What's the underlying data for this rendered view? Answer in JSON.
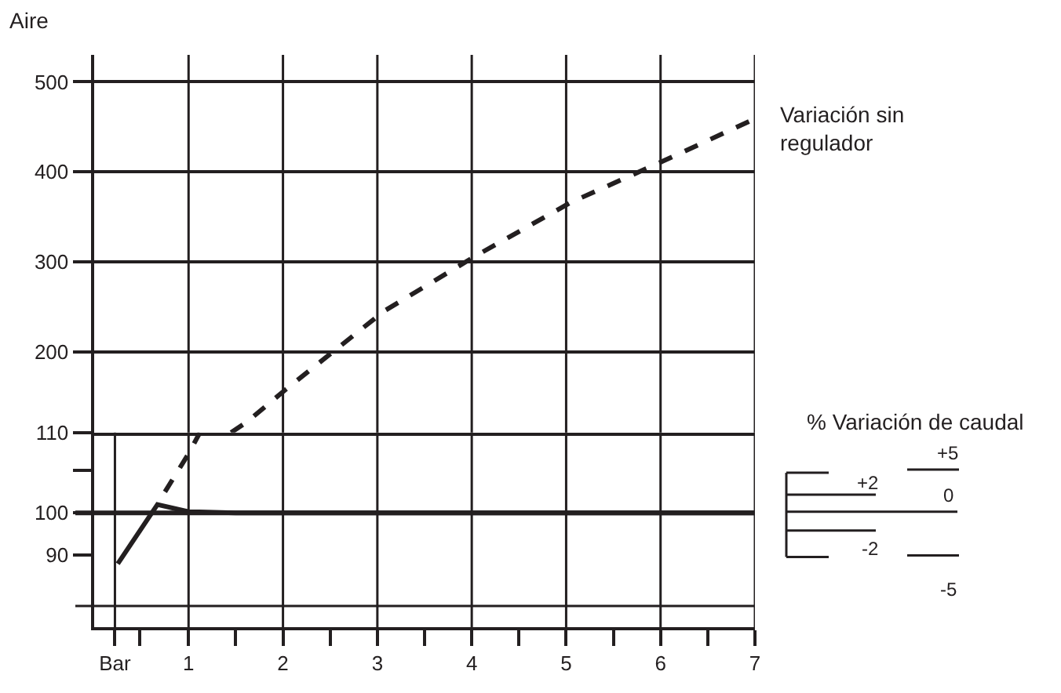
{
  "chart_data": [
    {
      "type": "line",
      "ylabel": "Aire",
      "xlim": [
        0,
        7
      ],
      "xticks": [
        1,
        2,
        3,
        4,
        5,
        6,
        7
      ],
      "ylim": [
        110,
        530
      ],
      "yticks": [
        110,
        200,
        300,
        400,
        500
      ],
      "tick_labels": "y",
      "grid": true,
      "series": [
        {
          "name": "Variación sin regulador",
          "color": "#231f20",
          "line_style": "dashed",
          "x": [
            1.45,
            1.62,
            2.03,
            3.07,
            4.05,
            5.05,
            6.03,
            7.0
          ],
          "values": [
            110,
            122,
            158,
            245,
            307,
            366,
            412,
            459
          ]
        }
      ]
    },
    {
      "type": "line",
      "xlim": [
        0,
        7
      ],
      "xticks": [
        {
          "value": 0.22,
          "label": "Bar"
        },
        {
          "value": 0.48,
          "label": null
        },
        1,
        {
          "value": 1.5,
          "label": null
        },
        2,
        {
          "value": 2.5,
          "label": null
        },
        3,
        {
          "value": 3.5,
          "label": null
        },
        4,
        {
          "value": 4.5,
          "label": null
        },
        5,
        {
          "value": 5.5,
          "label": null
        },
        6,
        {
          "value": 6.5,
          "label": null
        },
        7
      ],
      "ylim": [
        73,
        119
      ],
      "yticks": [
        90,
        100,
        {
          "value": 110,
          "label": null
        }
      ],
      "grid": "x",
      "series": [
        {
          "color": "#231f20",
          "line_style": "solid",
          "x": [
            0.25,
            0.67,
            1.0,
            1.5,
            7.0
          ],
          "values": [
            88,
            102,
            100.3,
            100,
            100
          ]
        },
        {
          "color": "#231f20",
          "line_style": "dashed",
          "x": [
            0.75,
            1.0,
            1.12
          ],
          "values": [
            105,
            114,
            119
          ]
        }
      ],
      "ref_lines": [
        {
          "axis": "y",
          "value": 100,
          "line_style": "solid"
        },
        {
          "axis": "y",
          "value": 78,
          "line_style": "solid"
        }
      ],
      "annotations": [
        "% Variación de caudal",
        "+5",
        "+2",
        "0",
        "-2",
        "-5"
      ]
    }
  ]
}
